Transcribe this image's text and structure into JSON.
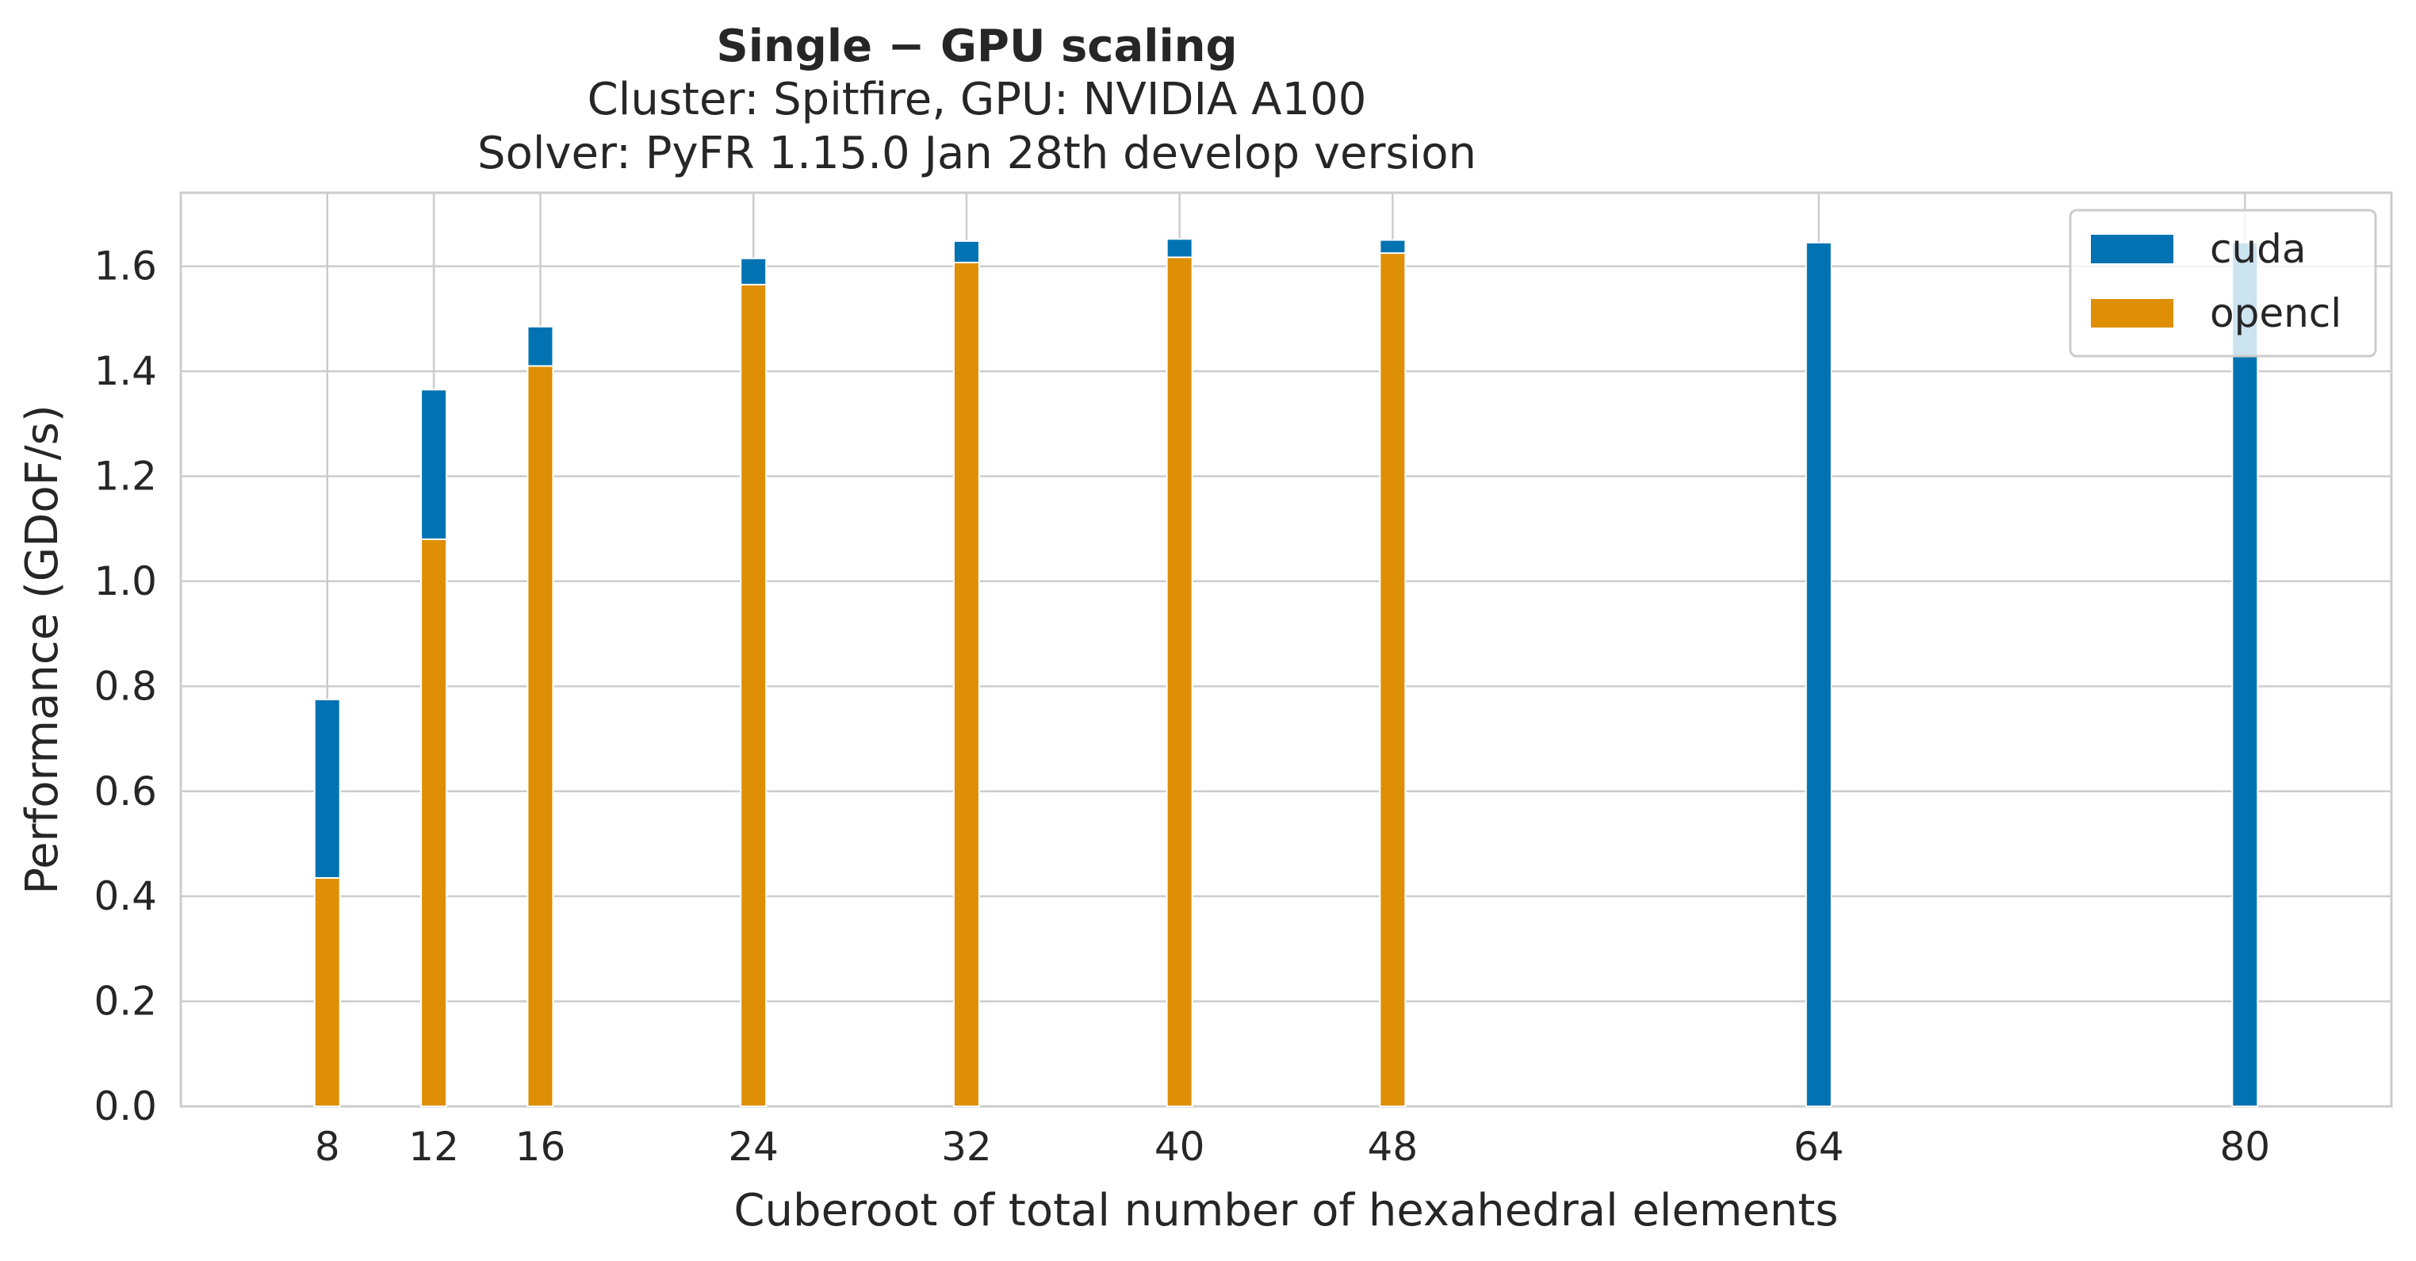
{
  "chart_data": {
    "type": "bar",
    "title": "Single − GPU scaling",
    "subtitle_lines": [
      "Cluster: Spitfire, GPU: NVIDIA A100",
      "Solver: PyFR 1.15.0 Jan 28th develop version"
    ],
    "xlabel": "Cuberoot of total number of hexahedral elements",
    "ylabel": "Performance (GDoF/s)",
    "xlim": [
      2.5,
      85.5
    ],
    "ylim": [
      0,
      1.74
    ],
    "x_ticks": [
      "8",
      "12",
      "16",
      "24",
      "32",
      "40",
      "48",
      "64",
      "80"
    ],
    "y_ticks": [
      "0.0",
      "0.2",
      "0.4",
      "0.6",
      "0.8",
      "1.0",
      "1.2",
      "1.4",
      "1.6"
    ],
    "x": [
      8,
      12,
      16,
      24,
      32,
      40,
      48,
      64,
      80
    ],
    "grid": true,
    "legend_position": "top-right",
    "series": [
      {
        "name": "cuda",
        "color": "#0173b2",
        "values": [
          0.775,
          1.365,
          1.485,
          1.615,
          1.648,
          1.652,
          1.65,
          1.645,
          1.645
        ]
      },
      {
        "name": "opencl",
        "color": "#de8f05",
        "values": [
          0.435,
          1.08,
          1.41,
          1.565,
          1.607,
          1.617,
          1.625,
          null,
          null
        ]
      }
    ]
  }
}
